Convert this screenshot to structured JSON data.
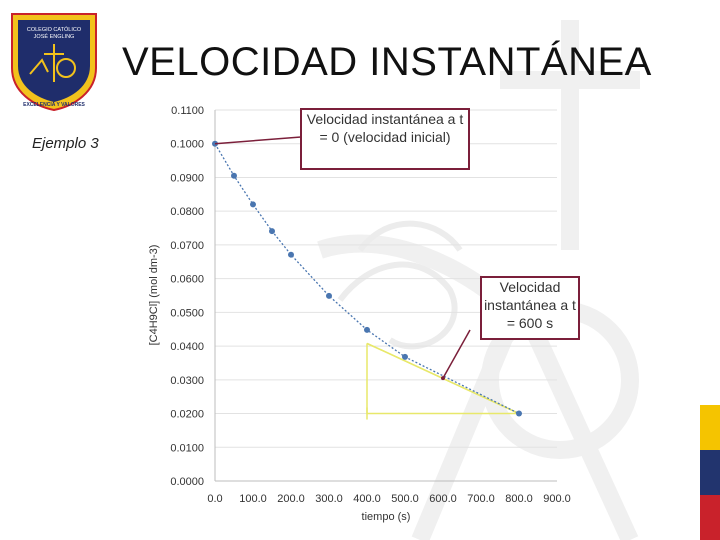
{
  "slide": {
    "title": "VELOCIDAD INSTANTÁNEA",
    "example_label": "Ejemplo 3",
    "logo": {
      "text_top_1": "COLEGIO CATÓLICO",
      "text_top_2": "JOSÉ ENGLING",
      "text_bottom": "EXCELENCIA Y VALORES",
      "colors": {
        "shield": "#1f2d6b",
        "gold": "#f2c21c",
        "border": "#c9222b"
      }
    },
    "flag_colors": [
      "#f5c400",
      "#22346e",
      "#c9222b"
    ]
  },
  "chart_data": {
    "type": "scatter",
    "xlabel": "tiempo (s)",
    "ylabel": "[C4H9Cl] (mol dm-3)",
    "x_ticks": [
      "0.0",
      "100.0",
      "200.0",
      "300.0",
      "400.0",
      "500.0",
      "600.0",
      "700.0",
      "800.0",
      "900.0"
    ],
    "y_ticks": [
      "0.0000",
      "0.0100",
      "0.0200",
      "0.0300",
      "0.0400",
      "0.0500",
      "0.0600",
      "0.0700",
      "0.0800",
      "0.0900",
      "0.1000",
      "0.1100"
    ],
    "xlim": [
      0,
      900
    ],
    "ylim": [
      0,
      0.11
    ],
    "grid": true,
    "series": [
      {
        "x": [
          0,
          50,
          100,
          150,
          200,
          300,
          400,
          500,
          800
        ],
        "y": [
          0.1,
          0.0905,
          0.082,
          0.0741,
          0.0671,
          0.0549,
          0.0448,
          0.0368,
          0.02
        ],
        "color": "#4a76b0"
      }
    ],
    "tangent_line": {
      "x": [
        400,
        800
      ],
      "y": [
        0.0408,
        0.02
      ],
      "color": "#e8e86a"
    },
    "triangle": {
      "x": [
        400,
        400,
        800
      ],
      "y": [
        0.0408,
        0.02,
        0.02
      ],
      "color": "#e8e86a"
    },
    "annotations": [
      {
        "text": "Velocidad instantánea a t = 0 (velocidad inicial)",
        "x": 0,
        "y": 0.1
      },
      {
        "text": "Velocidad instantánea a t = 600 s",
        "x": 600,
        "y": 0.0305
      }
    ]
  }
}
